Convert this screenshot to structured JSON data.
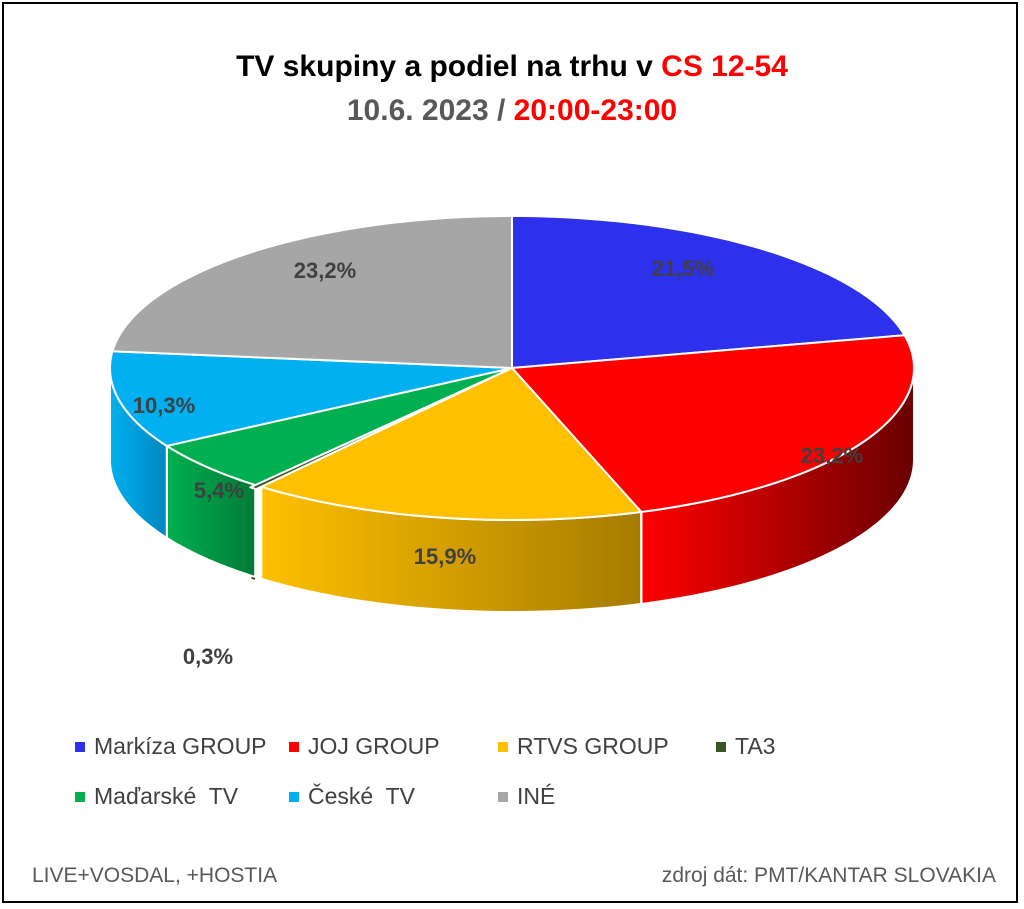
{
  "title": {
    "line1_prefix": "TV skupiny a podiel na trhu v ",
    "line1_highlight": "CS 12-54",
    "line2_prefix": "10.6. 2023 / ",
    "line2_highlight": "20:00-23:00",
    "prefix2_color": "#595959",
    "highlight_color": "#FF0000"
  },
  "chart_data": {
    "type": "pie",
    "style": "3d",
    "slices": [
      {
        "name": "Markíza GROUP",
        "value": 21.5,
        "label": "21,5%",
        "color": "#2E31EC",
        "side_color": "#1A1C8A"
      },
      {
        "name": "JOJ GROUP",
        "value": 23.2,
        "label": "23,2%",
        "color": "#FF0000",
        "side_color": "#6A0000"
      },
      {
        "name": "RTVS GROUP",
        "value": 15.9,
        "label": "15,9%",
        "color": "#FFC000",
        "side_color": "#A67C00"
      },
      {
        "name": "TA3",
        "value": 0.3,
        "label": "0,3%",
        "color": "#375623",
        "side_color": "#1F3314"
      },
      {
        "name": "Maďarské  TV",
        "value": 5.4,
        "label": "5,4%",
        "color": "#00B050",
        "side_color": "#007A37"
      },
      {
        "name": "České  TV",
        "value": 10.3,
        "label": "10,3%",
        "color": "#00B0F0",
        "side_color": "#0086C0"
      },
      {
        "name": "INÉ",
        "value": 23.2,
        "label": "23,2%",
        "color": "#A6A6A6",
        "side_color": "#7A7A7A"
      }
    ],
    "data_label_color": "#404040",
    "legend_position": "bottom"
  },
  "footer": {
    "left": "LIVE+VOSDAL, +HOSTIA",
    "right": "zdroj dát: PMT/KANTAR SLOVAKIA"
  }
}
